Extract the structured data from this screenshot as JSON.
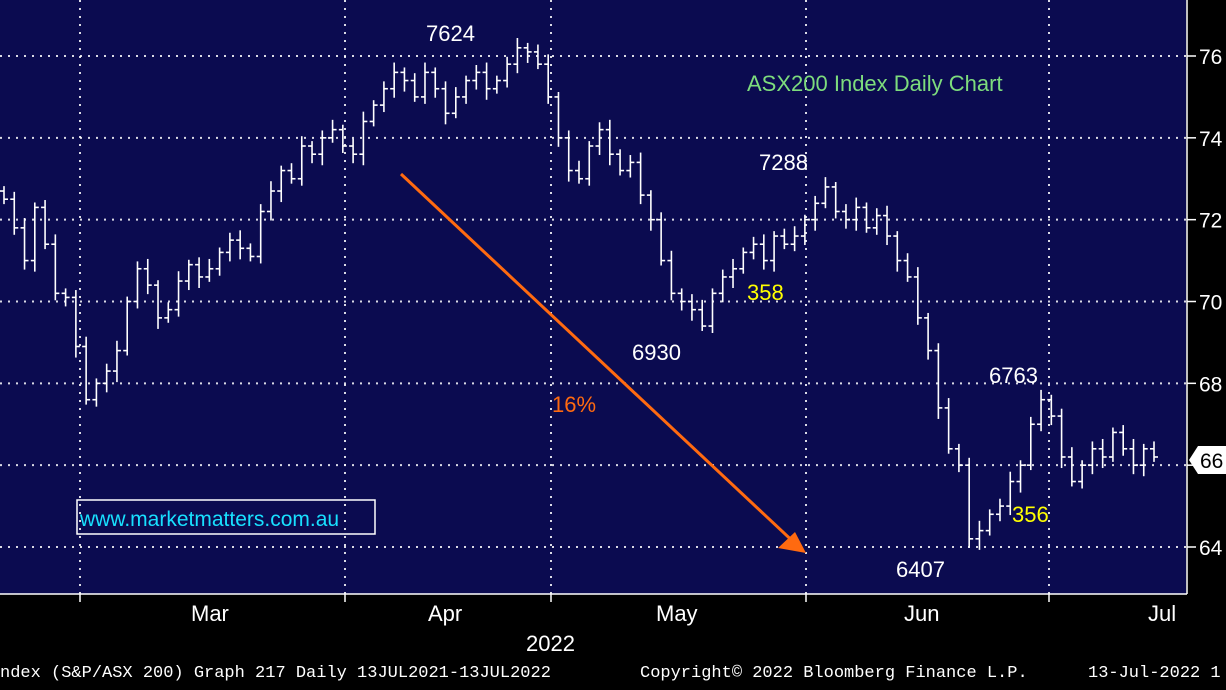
{
  "chart_data": {
    "type": "ohlc",
    "title": "ASX200 Index Daily Chart",
    "watermark": "www.marketmatters.com.au",
    "x_ticks": [
      "Mar",
      "Apr",
      "May",
      "Jun",
      "Jul"
    ],
    "x_year": "2022",
    "y_ticks": [
      "76",
      "74",
      "72",
      "70",
      "68",
      "66",
      "64"
    ],
    "ylim": [
      6300,
      7720
    ],
    "last_price_label": "66",
    "last_price_value": 6620,
    "background": "#0b0b50",
    "grid": true,
    "bar_color": "#ffffff",
    "annotations": {
      "high_7624": "7624",
      "high_7288": "7288",
      "high_6763": "6763",
      "low_6930": "6930",
      "low_6407": "6407",
      "move_358": "358",
      "move_356": "356",
      "decline_pct": "16%"
    },
    "arrow_color": "#ff6a10",
    "prices": [
      7250,
      7180,
      7100,
      7230,
      7140,
      7020,
      7010,
      6890,
      6760,
      6800,
      6830,
      6880,
      7000,
      7080,
      7040,
      6960,
      6980,
      7050,
      7090,
      7060,
      7080,
      7120,
      7150,
      7130,
      7110,
      7220,
      7270,
      7320,
      7300,
      7380,
      7360,
      7400,
      7420,
      7380,
      7360,
      7440,
      7480,
      7520,
      7560,
      7540,
      7500,
      7560,
      7520,
      7460,
      7500,
      7540,
      7560,
      7520,
      7540,
      7580,
      7620,
      7610,
      7580,
      7500,
      7400,
      7320,
      7300,
      7380,
      7420,
      7360,
      7320,
      7340,
      7260,
      7200,
      7100,
      7020,
      7000,
      6980,
      6940,
      7020,
      7060,
      7080,
      7120,
      7140,
      7100,
      7160,
      7140,
      7160,
      7200,
      7240,
      7280,
      7220,
      7200,
      7230,
      7180,
      7210,
      7160,
      7100,
      7060,
      6960,
      6880,
      6740,
      6640,
      6600,
      6420,
      6440,
      6480,
      6500,
      6560,
      6600,
      6700,
      6760,
      6720,
      6620,
      6560,
      6600,
      6640,
      6620,
      6680,
      6640,
      6600,
      6640,
      6620
    ]
  },
  "footer": {
    "left": "ndex (S&P/ASX 200) Graph 217  Daily 13JUL2021-13JUL2022",
    "middle": "Copyright© 2022 Bloomberg Finance L.P.",
    "right": "13-Jul-2022 1"
  }
}
